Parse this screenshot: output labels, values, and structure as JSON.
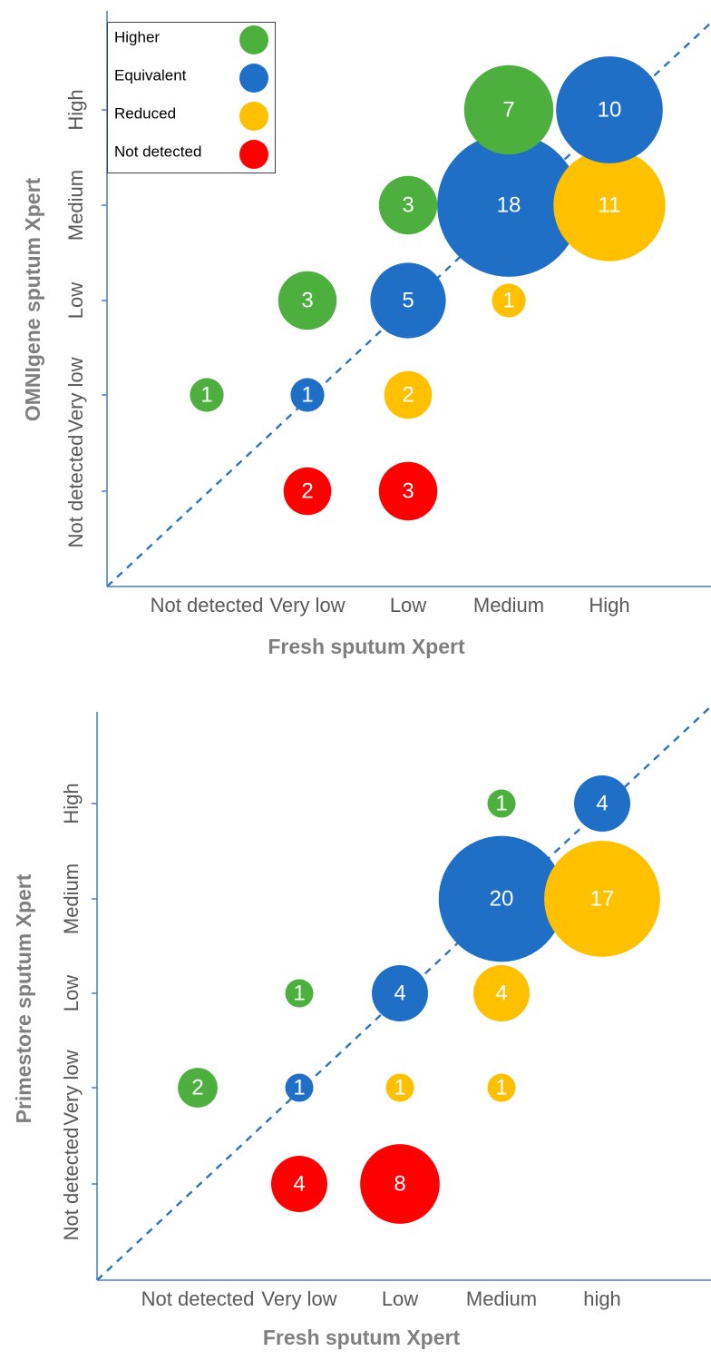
{
  "chart_data": [
    {
      "type": "bubble",
      "xlabel": "Fresh sputum Xpert",
      "ylabel": "OMNIgene sputum Xpert",
      "x_categories": [
        "Not detected",
        "Very low",
        "Low",
        "Medium",
        "High"
      ],
      "y_categories": [
        "Not detected",
        "Very low",
        "Low",
        "Medium",
        "High"
      ],
      "legend": {
        "position": "top-left",
        "items": [
          {
            "label": "Higher",
            "color": "#4caf3e"
          },
          {
            "label": "Equivalent",
            "color": "#1f6fc7"
          },
          {
            "label": "Reduced",
            "color": "#ffc000"
          },
          {
            "label": "Not detected",
            "color": "#ff0000"
          }
        ]
      },
      "diagonal": true,
      "points": [
        {
          "x": "Medium",
          "y": "High",
          "value": 7,
          "label": "7",
          "group": "Higher"
        },
        {
          "x": "High",
          "y": "High",
          "value": 10,
          "label": "10",
          "group": "Equivalent"
        },
        {
          "x": "High",
          "y": "Medium",
          "value": 11,
          "label": "11",
          "group": "Reduced"
        },
        {
          "x": "Medium",
          "y": "Medium",
          "value": 18,
          "label": "18",
          "group": "Equivalent"
        },
        {
          "x": "Low",
          "y": "Medium",
          "value": 3,
          "label": "3",
          "group": "Higher"
        },
        {
          "x": "Very low",
          "y": "Low",
          "value": 3,
          "label": "3",
          "group": "Higher"
        },
        {
          "x": "Low",
          "y": "Low",
          "value": 5,
          "label": "5",
          "group": "Equivalent"
        },
        {
          "x": "Medium",
          "y": "Low",
          "value": 1,
          "label": "1",
          "group": "Reduced"
        },
        {
          "x": "Not detected",
          "y": "Very low",
          "value": 1,
          "label": "1",
          "group": "Higher"
        },
        {
          "x": "Very low",
          "y": "Very low",
          "value": 1,
          "label": "1",
          "group": "Equivalent"
        },
        {
          "x": "Low",
          "y": "Very low",
          "value": 2,
          "label": "2",
          "group": "Reduced"
        },
        {
          "x": "Very low",
          "y": "Not detected",
          "value": 2,
          "label": "2",
          "group": "Not detected"
        },
        {
          "x": "Low",
          "y": "Not detected",
          "value": 3,
          "label": "3",
          "group": "Not detected"
        }
      ]
    },
    {
      "type": "bubble",
      "xlabel": "Fresh sputum Xpert",
      "ylabel": "Primestore sputum Xpert",
      "x_categories": [
        "Not detected",
        "Very low",
        "Low",
        "Medium",
        "high"
      ],
      "y_categories": [
        "Not detected",
        "Very low",
        "Low",
        "Medium",
        "High"
      ],
      "diagonal": true,
      "points": [
        {
          "x": "Medium",
          "y": "High",
          "value": 1,
          "label": "1",
          "group": "Higher"
        },
        {
          "x": "high",
          "y": "High",
          "value": 4,
          "label": "4",
          "group": "Equivalent"
        },
        {
          "x": "high",
          "y": "Medium",
          "value": 17,
          "label": "17",
          "group": "Reduced"
        },
        {
          "x": "Medium",
          "y": "Medium",
          "value": 20,
          "label": "20",
          "group": "Equivalent"
        },
        {
          "x": "Very low",
          "y": "Low",
          "value": 1,
          "label": "1",
          "group": "Higher"
        },
        {
          "x": "Low",
          "y": "Low",
          "value": 4,
          "label": "4",
          "group": "Equivalent"
        },
        {
          "x": "Medium",
          "y": "Low",
          "value": 4,
          "label": "4",
          "group": "Reduced"
        },
        {
          "x": "Not detected",
          "y": "Very low",
          "value": 2,
          "label": "2",
          "group": "Higher"
        },
        {
          "x": "Very low",
          "y": "Very low",
          "value": 1,
          "label": "1",
          "group": "Equivalent"
        },
        {
          "x": "Low",
          "y": "Very low",
          "value": 1,
          "label": "1",
          "group": "Reduced"
        },
        {
          "x": "Medium",
          "y": "Very low",
          "value": 1,
          "label": "1",
          "group": "Reduced"
        },
        {
          "x": "Very low",
          "y": "Not detected",
          "value": 4,
          "label": "4",
          "group": "Not detected"
        },
        {
          "x": "Low",
          "y": "Not detected",
          "value": 8,
          "label": "8",
          "group": "Not detected"
        }
      ]
    }
  ]
}
